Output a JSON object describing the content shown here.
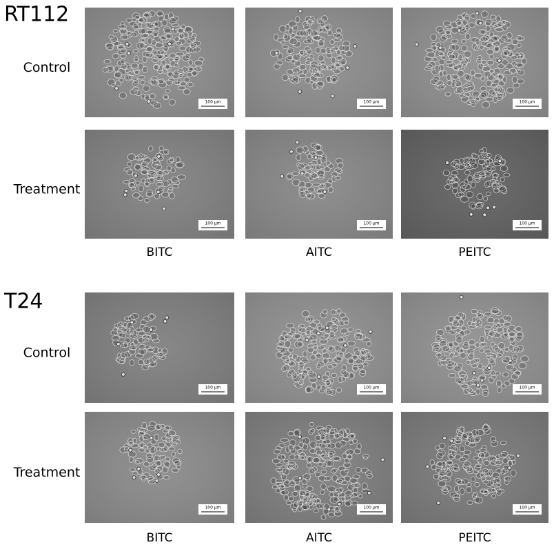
{
  "panels": [
    {
      "title": "RT112",
      "row_labels": [
        "Control",
        "Treatment"
      ],
      "column_labels": [
        "BITC",
        "AITC",
        "PEITC"
      ],
      "scale_bars": [
        [
          "100 µm",
          "100 µm",
          "100 µm"
        ],
        [
          "100 µm",
          "100 µm",
          "100 µm"
        ]
      ]
    },
    {
      "title": "T24",
      "row_labels": [
        "Control",
        "Treatment"
      ],
      "column_labels": [
        "BITC",
        "AITC",
        "PEITC"
      ],
      "scale_bars": [
        [
          "100 µm",
          "100 µm",
          "100 µm"
        ],
        [
          "100 µm",
          "100 µm",
          "100 µm"
        ]
      ]
    }
  ]
}
